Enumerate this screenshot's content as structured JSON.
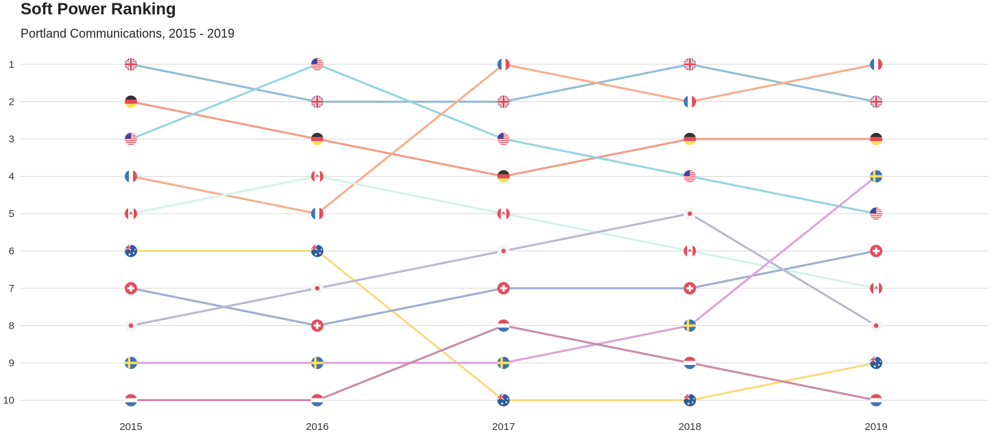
{
  "chart_data": {
    "type": "line",
    "title": "Soft Power Ranking",
    "subtitle": "Portland Communications, 2015 - 2019",
    "x": [
      "2015",
      "2016",
      "2017",
      "2018",
      "2019"
    ],
    "y_ticks": [
      "1",
      "2",
      "3",
      "4",
      "5",
      "6",
      "7",
      "8",
      "9",
      "10"
    ],
    "ylim": [
      1,
      10
    ],
    "y_reversed": true,
    "grid": "horizontal",
    "series": [
      {
        "flag": "uk-flag",
        "color": "#92bcd6",
        "values": [
          1,
          2,
          2,
          1,
          2
        ]
      },
      {
        "flag": "germany-flag",
        "color": "#f39a8a",
        "values": [
          2,
          3,
          4,
          3,
          3
        ]
      },
      {
        "flag": "usa-flag",
        "color": "#94d6e0",
        "values": [
          3,
          1,
          3,
          4,
          5
        ]
      },
      {
        "flag": "france-flag",
        "color": "#f7ad8c",
        "values": [
          4,
          5,
          1,
          2,
          1
        ]
      },
      {
        "flag": "canada-flag",
        "color": "#d4f3ea",
        "values": [
          5,
          4,
          5,
          6,
          7
        ]
      },
      {
        "flag": "australia-flag",
        "color": "#f8dc7c",
        "values": [
          6,
          6,
          10,
          10,
          9
        ]
      },
      {
        "flag": "switzerland-flag",
        "color": "#9eadd0",
        "values": [
          7,
          8,
          7,
          7,
          6
        ]
      },
      {
        "flag": "japan-flag",
        "color": "#b7b8d0",
        "values": [
          8,
          7,
          6,
          5,
          8
        ]
      },
      {
        "flag": "sweden-flag",
        "color": "#daa3d8",
        "values": [
          9,
          9,
          9,
          8,
          4
        ]
      },
      {
        "flag": "netherlands-flag",
        "color": "#c98aa8",
        "values": [
          10,
          10,
          8,
          9,
          10
        ]
      }
    ]
  }
}
